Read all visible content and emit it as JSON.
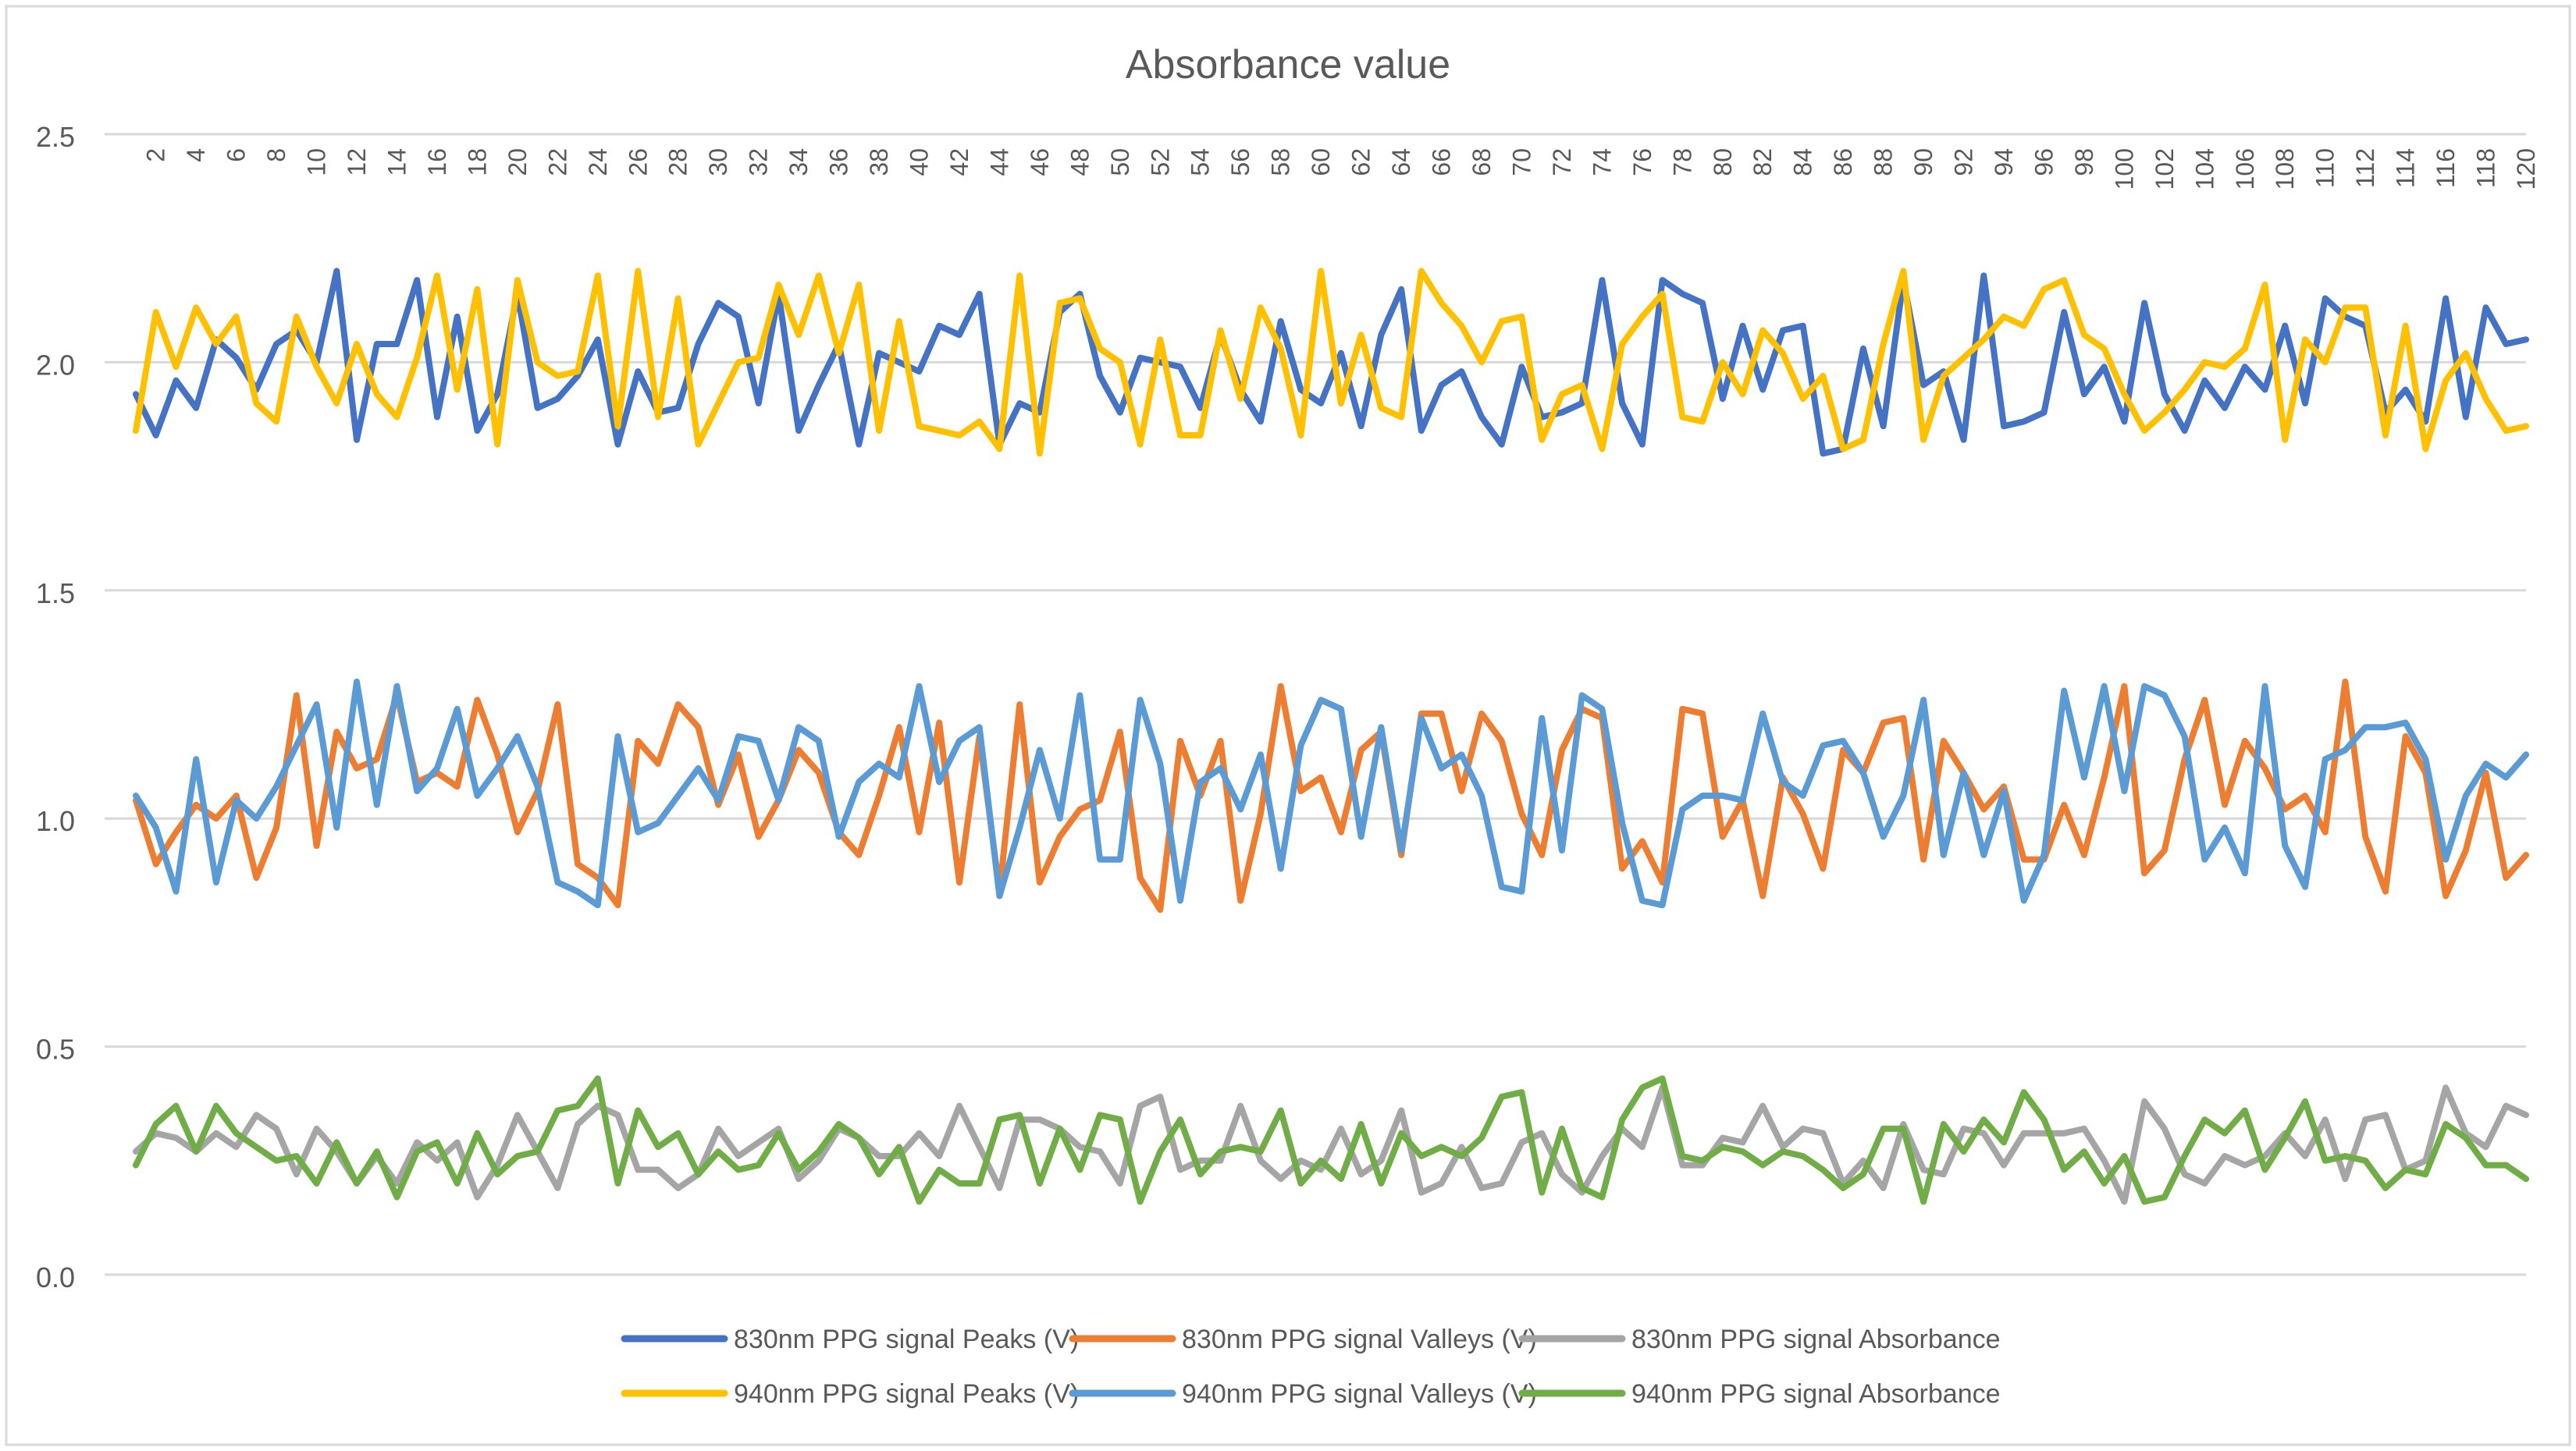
{
  "chart_data": {
    "type": "line",
    "title": "Absorbance value",
    "xlabel": "",
    "ylabel": "",
    "ylim": [
      0,
      2.5
    ],
    "yticks": [
      "0.0",
      "0.5",
      "1.0",
      "1.5",
      "2.0",
      "2.5"
    ],
    "ytick_values": [
      0,
      0.5,
      1.0,
      1.5,
      2.0,
      2.5
    ],
    "x_tick_labels": [
      "2",
      "4",
      "6",
      "8",
      "10",
      "12",
      "14",
      "16",
      "18",
      "20",
      "22",
      "24",
      "26",
      "28",
      "30",
      "32",
      "34",
      "36",
      "38",
      "40",
      "42",
      "44",
      "46",
      "48",
      "50",
      "52",
      "54",
      "56",
      "58",
      "60",
      "62",
      "64",
      "66",
      "68",
      "70",
      "72",
      "74",
      "76",
      "78",
      "80",
      "82",
      "84",
      "86",
      "88",
      "90",
      "92",
      "94",
      "96",
      "98",
      "100",
      "102",
      "104",
      "106",
      "108",
      "110",
      "112",
      "114",
      "116",
      "118",
      "120"
    ],
    "x_count": 120,
    "grid": true,
    "legend_position": "bottom",
    "series": [
      {
        "name": "830nm PPG signal Peaks (V)",
        "color": "#4472C4",
        "values": [
          1.93,
          1.84,
          1.96,
          1.9,
          2.05,
          2.01,
          1.94,
          2.04,
          2.07,
          2.0,
          2.2,
          1.83,
          2.04,
          2.04,
          2.18,
          1.88,
          2.1,
          1.85,
          1.93,
          2.15,
          1.9,
          1.92,
          1.97,
          2.05,
          1.82,
          1.98,
          1.89,
          1.9,
          2.04,
          2.13,
          2.1,
          1.91,
          2.15,
          1.85,
          1.95,
          2.04,
          1.82,
          2.02,
          2.0,
          1.98,
          2.08,
          2.06,
          2.15,
          1.82,
          1.91,
          1.89,
          2.11,
          2.15,
          1.97,
          1.89,
          2.01,
          2.0,
          1.99,
          1.9,
          2.06,
          1.94,
          1.87,
          2.09,
          1.94,
          1.91,
          2.02,
          1.86,
          2.06,
          2.16,
          1.85,
          1.95,
          1.98,
          1.88,
          1.82,
          1.99,
          1.88,
          1.89,
          1.91,
          2.18,
          1.91,
          1.82,
          2.18,
          2.15,
          2.13,
          1.92,
          2.08,
          1.94,
          2.07,
          2.08,
          1.8,
          1.81,
          2.03,
          1.86,
          2.18,
          1.95,
          1.98,
          1.83,
          2.19,
          1.86,
          1.87,
          1.89,
          2.11,
          1.93,
          1.99,
          1.87,
          2.13,
          1.93,
          1.85,
          1.96,
          1.9,
          1.99,
          1.94,
          2.08,
          1.91,
          2.14,
          2.1,
          2.08,
          1.89,
          1.94,
          1.87,
          2.14,
          1.88,
          2.12,
          2.04,
          2.05
        ]
      },
      {
        "name": "830nm PPG signal Valleys (V)",
        "color": "#ED7D31",
        "values": [
          1.04,
          0.9,
          0.97,
          1.03,
          1.0,
          1.05,
          0.87,
          0.98,
          1.27,
          0.94,
          1.19,
          1.11,
          1.13,
          1.27,
          1.08,
          1.1,
          1.07,
          1.26,
          1.14,
          0.97,
          1.06,
          1.25,
          0.9,
          0.87,
          0.81,
          1.17,
          1.12,
          1.25,
          1.2,
          1.03,
          1.14,
          0.96,
          1.04,
          1.15,
          1.1,
          0.97,
          0.92,
          1.05,
          1.2,
          0.97,
          1.21,
          0.86,
          1.18,
          0.84,
          1.25,
          0.86,
          0.96,
          1.02,
          1.04,
          1.19,
          0.87,
          0.8,
          1.17,
          1.05,
          1.17,
          0.82,
          1.01,
          1.29,
          1.06,
          1.09,
          0.97,
          1.15,
          1.19,
          0.92,
          1.23,
          1.23,
          1.06,
          1.23,
          1.17,
          1.01,
          0.92,
          1.15,
          1.24,
          1.22,
          0.89,
          0.95,
          0.86,
          1.24,
          1.23,
          0.96,
          1.04,
          0.83,
          1.09,
          1.01,
          0.89,
          1.15,
          1.1,
          1.21,
          1.22,
          0.91,
          1.17,
          1.1,
          1.02,
          1.07,
          0.91,
          0.91,
          1.03,
          0.92,
          1.09,
          1.29,
          0.88,
          0.93,
          1.13,
          1.26,
          1.03,
          1.17,
          1.11,
          1.02,
          1.05,
          0.97,
          1.3,
          0.96,
          0.84,
          1.18,
          1.1,
          0.83,
          0.93,
          1.1,
          0.87,
          0.92
        ]
      },
      {
        "name": "830nm PPG signal Absorbance",
        "color": "#A5A5A5",
        "values": [
          0.27,
          0.31,
          0.3,
          0.27,
          0.31,
          0.28,
          0.35,
          0.32,
          0.22,
          0.32,
          0.27,
          0.2,
          0.26,
          0.2,
          0.29,
          0.25,
          0.29,
          0.17,
          0.24,
          0.35,
          0.27,
          0.19,
          0.33,
          0.37,
          0.35,
          0.23,
          0.23,
          0.19,
          0.22,
          0.32,
          0.26,
          0.29,
          0.32,
          0.21,
          0.25,
          0.32,
          0.3,
          0.26,
          0.26,
          0.31,
          0.26,
          0.37,
          0.28,
          0.19,
          0.34,
          0.34,
          0.32,
          0.28,
          0.27,
          0.2,
          0.37,
          0.39,
          0.23,
          0.25,
          0.25,
          0.37,
          0.25,
          0.21,
          0.25,
          0.23,
          0.32,
          0.22,
          0.25,
          0.36,
          0.18,
          0.2,
          0.28,
          0.19,
          0.2,
          0.29,
          0.31,
          0.22,
          0.18,
          0.26,
          0.32,
          0.28,
          0.41,
          0.24,
          0.24,
          0.3,
          0.29,
          0.37,
          0.28,
          0.32,
          0.31,
          0.2,
          0.25,
          0.19,
          0.33,
          0.23,
          0.22,
          0.32,
          0.31,
          0.24,
          0.31,
          0.31,
          0.31,
          0.32,
          0.25,
          0.16,
          0.38,
          0.32,
          0.22,
          0.2,
          0.26,
          0.24,
          0.26,
          0.31,
          0.26,
          0.34,
          0.21,
          0.34,
          0.35,
          0.23,
          0.25,
          0.41,
          0.31,
          0.28,
          0.37,
          0.35
        ]
      },
      {
        "name": "940nm PPG signal Peaks (V)",
        "color": "#FFC000",
        "values": [
          1.85,
          2.11,
          1.99,
          2.12,
          2.04,
          2.1,
          1.91,
          1.87,
          2.1,
          1.99,
          1.91,
          2.04,
          1.93,
          1.88,
          2.01,
          2.19,
          1.94,
          2.16,
          1.82,
          2.18,
          2.0,
          1.97,
          1.98,
          2.19,
          1.86,
          2.2,
          1.88,
          2.14,
          1.82,
          1.91,
          2.0,
          2.01,
          2.17,
          2.06,
          2.19,
          2.02,
          2.17,
          1.85,
          2.09,
          1.86,
          1.85,
          1.84,
          1.87,
          1.81,
          2.19,
          1.8,
          2.13,
          2.14,
          2.03,
          2.0,
          1.82,
          2.05,
          1.84,
          1.84,
          2.07,
          1.92,
          2.12,
          2.03,
          1.84,
          2.2,
          1.91,
          2.06,
          1.9,
          1.88,
          2.2,
          2.13,
          2.08,
          2.0,
          2.09,
          2.1,
          1.83,
          1.93,
          1.95,
          1.81,
          2.04,
          2.1,
          2.15,
          1.88,
          1.87,
          2.0,
          1.93,
          2.07,
          2.02,
          1.92,
          1.97,
          1.81,
          1.83,
          2.04,
          2.2,
          1.83,
          1.97,
          2.01,
          2.05,
          2.1,
          2.08,
          2.16,
          2.18,
          2.06,
          2.03,
          1.93,
          1.85,
          1.89,
          1.94,
          2.0,
          1.99,
          2.03,
          2.17,
          1.83,
          2.05,
          2.0,
          2.12,
          2.12,
          1.84,
          2.08,
          1.81,
          1.96,
          2.02,
          1.92,
          1.85,
          1.86
        ]
      },
      {
        "name": "940nm PPG signal Valleys (V)",
        "color": "#5B9BD5",
        "values": [
          1.05,
          0.98,
          0.84,
          1.13,
          0.86,
          1.04,
          1.0,
          1.07,
          1.16,
          1.25,
          0.98,
          1.3,
          1.03,
          1.29,
          1.06,
          1.11,
          1.24,
          1.05,
          1.11,
          1.18,
          1.07,
          0.86,
          0.84,
          0.81,
          1.18,
          0.97,
          0.99,
          1.05,
          1.11,
          1.04,
          1.18,
          1.17,
          1.04,
          1.2,
          1.17,
          0.96,
          1.08,
          1.12,
          1.09,
          1.29,
          1.08,
          1.17,
          1.2,
          0.83,
          0.98,
          1.15,
          1.0,
          1.27,
          0.91,
          0.91,
          1.26,
          1.12,
          0.82,
          1.08,
          1.11,
          1.02,
          1.14,
          0.89,
          1.16,
          1.26,
          1.24,
          0.96,
          1.2,
          0.93,
          1.22,
          1.11,
          1.14,
          1.05,
          0.85,
          0.84,
          1.22,
          0.93,
          1.27,
          1.24,
          0.99,
          0.82,
          0.81,
          1.02,
          1.05,
          1.05,
          1.04,
          1.23,
          1.08,
          1.05,
          1.16,
          1.17,
          1.1,
          0.96,
          1.05,
          1.26,
          0.92,
          1.1,
          0.92,
          1.06,
          0.82,
          0.92,
          1.28,
          1.09,
          1.29,
          1.06,
          1.29,
          1.27,
          1.18,
          0.91,
          0.98,
          0.88,
          1.29,
          0.94,
          0.85,
          1.13,
          1.15,
          1.2,
          1.2,
          1.21,
          1.13,
          0.91,
          1.05,
          1.12,
          1.09,
          1.14
        ]
      },
      {
        "name": "940nm PPG signal Absorbance",
        "color": "#70AD47",
        "values": [
          0.24,
          0.33,
          0.37,
          0.27,
          0.37,
          0.31,
          0.28,
          0.25,
          0.26,
          0.2,
          0.29,
          0.2,
          0.27,
          0.17,
          0.27,
          0.29,
          0.2,
          0.31,
          0.22,
          0.26,
          0.27,
          0.36,
          0.37,
          0.43,
          0.2,
          0.36,
          0.28,
          0.31,
          0.22,
          0.27,
          0.23,
          0.24,
          0.31,
          0.23,
          0.27,
          0.33,
          0.3,
          0.22,
          0.28,
          0.16,
          0.23,
          0.2,
          0.2,
          0.34,
          0.35,
          0.2,
          0.32,
          0.23,
          0.35,
          0.34,
          0.16,
          0.27,
          0.34,
          0.22,
          0.27,
          0.28,
          0.27,
          0.36,
          0.2,
          0.25,
          0.21,
          0.33,
          0.2,
          0.31,
          0.26,
          0.28,
          0.26,
          0.3,
          0.39,
          0.4,
          0.18,
          0.32,
          0.19,
          0.17,
          0.34,
          0.41,
          0.43,
          0.26,
          0.25,
          0.28,
          0.27,
          0.24,
          0.27,
          0.26,
          0.23,
          0.19,
          0.22,
          0.32,
          0.32,
          0.16,
          0.33,
          0.27,
          0.34,
          0.29,
          0.4,
          0.34,
          0.23,
          0.27,
          0.2,
          0.26,
          0.16,
          0.17,
          0.26,
          0.34,
          0.31,
          0.36,
          0.23,
          0.3,
          0.38,
          0.25,
          0.26,
          0.25,
          0.19,
          0.23,
          0.22,
          0.33,
          0.3,
          0.24,
          0.24,
          0.21
        ]
      }
    ]
  }
}
